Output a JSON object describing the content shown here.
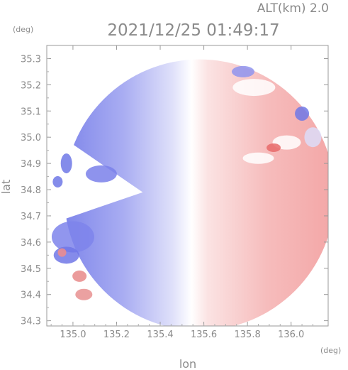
{
  "header": {
    "altitude_label": "ALT(km) 2.0",
    "timestamp": "2021/12/25 01:49:17"
  },
  "chart_data": {
    "type": "heatmap",
    "title": "2021/12/25 01:49:17",
    "subtitle": "ALT(km) 2.0",
    "xlabel": "lon",
    "ylabel": "lat",
    "x_unit": "(deg)",
    "y_unit": "(deg)",
    "xlim": [
      134.88,
      136.17
    ],
    "ylim": [
      34.28,
      35.35
    ],
    "x_ticks": [
      135.0,
      135.2,
      135.4,
      135.6,
      135.8,
      136.0
    ],
    "x_tick_labels": [
      "135.0",
      "135.2",
      "135.4",
      "135.6",
      "135.8",
      "136.0"
    ],
    "y_ticks": [
      34.3,
      34.4,
      34.5,
      34.6,
      34.7,
      34.8,
      34.9,
      35.0,
      35.1,
      35.2,
      35.3
    ],
    "y_tick_labels": [
      "34.3",
      "34.4",
      "34.5",
      "34.6",
      "34.7",
      "34.8",
      "34.9",
      "35.0",
      "35.1",
      "35.2",
      "35.3"
    ],
    "radar_center": {
      "lon": 135.58,
      "lat": 34.78
    },
    "radar_range_deg": 0.62,
    "field": "doppler velocity",
    "colors": {
      "approaching": "#8c90ee",
      "receding": "#f2a0a0",
      "zero": "#ffffff",
      "axis": "#8a8a8a"
    },
    "grid": false
  }
}
